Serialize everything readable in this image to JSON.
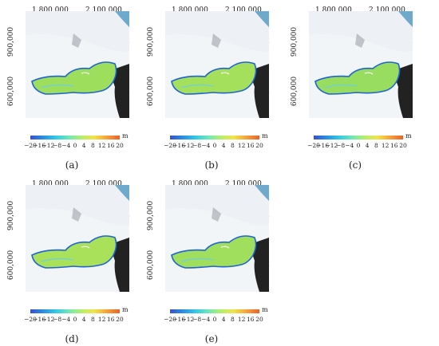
{
  "coord_labels": {
    "x_left": "1,800,000",
    "x_right": "2,100,000",
    "y_upper": "900,000",
    "y_lower": "600,000"
  },
  "colorbar": {
    "unit": "m",
    "ticks": [
      "−20",
      "−16",
      "−12",
      "−8",
      "−4",
      "0",
      "4",
      "8",
      "12",
      "16",
      "20"
    ],
    "colors": [
      "#3b4fd0",
      "#2a8fe0",
      "#33c8e6",
      "#6ee8b8",
      "#b5ef6a",
      "#f2e34a",
      "#f5a13a",
      "#e8632a"
    ]
  },
  "panels": [
    {
      "label": "(a)"
    },
    {
      "label": "(b)"
    },
    {
      "label": "(c)"
    },
    {
      "label": "(d)"
    },
    {
      "label": "(e)"
    }
  ]
}
